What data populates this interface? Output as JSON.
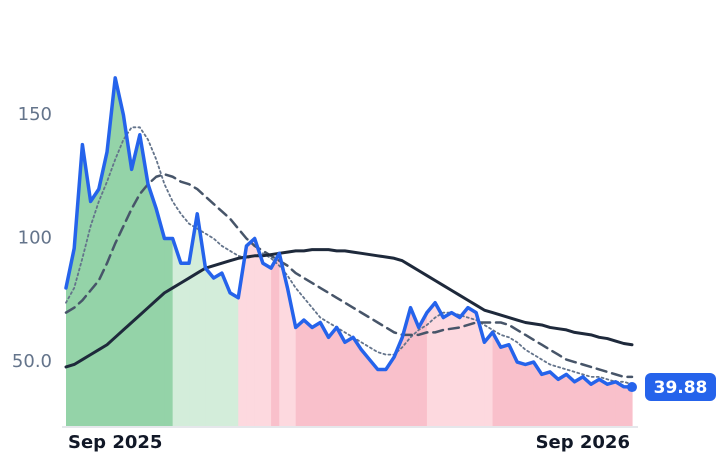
{
  "chart_data": {
    "type": "line",
    "categories": [
      null,
      null,
      null,
      null,
      null,
      null,
      "Sep 2025",
      null,
      null,
      null,
      null,
      null,
      null,
      null,
      null,
      null,
      null,
      null,
      null,
      null,
      null,
      null,
      null,
      null,
      null,
      null,
      null,
      null,
      null,
      null,
      null,
      null,
      null,
      null,
      null,
      null,
      null,
      null,
      null,
      null,
      null,
      null,
      null,
      null,
      null,
      null,
      null,
      null,
      null,
      null,
      null,
      null,
      null,
      null,
      null,
      null,
      null,
      null,
      null,
      null,
      null,
      null,
      null,
      "Sep 2026",
      null,
      null,
      null,
      null,
      null,
      null
    ],
    "series": [
      {
        "color": "#2563eb",
        "style": "solid",
        "width": 3.5,
        "values": [
          80,
          96,
          138,
          115,
          120,
          135,
          165,
          150,
          128,
          142,
          122,
          112,
          100,
          100,
          90,
          90,
          110,
          88,
          84,
          86,
          78,
          76,
          97,
          100,
          90,
          88,
          94,
          80,
          64,
          67,
          64,
          66,
          60,
          64,
          58,
          60,
          55,
          51,
          47,
          47,
          52,
          60,
          72,
          64,
          70,
          74,
          68,
          70,
          68,
          72,
          70,
          58,
          62,
          56,
          57,
          50,
          49,
          50,
          45,
          46,
          43,
          45,
          42,
          44,
          41,
          43,
          41,
          42,
          40,
          39.88
        ]
      },
      {
        "color": "#1e293b",
        "style": "solid",
        "width": 3,
        "values": [
          48,
          49,
          51,
          53,
          55,
          57,
          60,
          63,
          66,
          69,
          72,
          75,
          78,
          80,
          82,
          84,
          86,
          88,
          89,
          90,
          91,
          92,
          92.5,
          93,
          93,
          93.5,
          94,
          94.5,
          95,
          95,
          95.5,
          95.5,
          95.5,
          95,
          95,
          94.5,
          94,
          93.5,
          93,
          92.5,
          92,
          91,
          89,
          87,
          85,
          83,
          81,
          79,
          77,
          75,
          73,
          71,
          70,
          69,
          68,
          67,
          66,
          65.5,
          65,
          64,
          63.5,
          63,
          62,
          61.5,
          61,
          60,
          59.5,
          58.5,
          57.5,
          57
        ]
      },
      {
        "color": "#475569",
        "style": "dashed",
        "width": 2.5,
        "values": [
          70,
          72,
          75,
          79,
          83,
          90,
          98,
          105,
          112,
          118,
          122,
          125,
          126,
          125,
          123,
          122,
          120,
          117,
          114,
          111,
          108,
          104,
          100,
          97,
          95,
          93,
          91,
          89,
          86,
          84,
          82,
          80,
          78,
          76,
          74,
          72,
          70,
          68,
          66,
          64,
          62,
          61,
          61,
          61,
          62,
          62,
          63,
          63.5,
          64,
          65,
          66,
          66,
          66,
          66,
          65,
          63,
          61,
          59,
          57,
          55,
          53,
          51,
          50,
          49,
          48,
          47,
          46,
          45,
          44,
          44
        ]
      },
      {
        "color": "#64748b",
        "style": "dotted",
        "width": 1.8,
        "values": [
          74,
          80,
          92,
          105,
          115,
          123,
          132,
          140,
          145,
          145,
          140,
          132,
          122,
          115,
          110,
          106,
          104,
          102,
          100,
          97,
          95,
          93,
          92,
          93,
          94,
          92,
          89,
          85,
          80,
          76,
          72,
          68,
          66,
          64,
          62,
          60,
          58,
          56,
          54,
          53,
          53,
          56,
          60,
          63,
          65,
          68,
          70,
          70,
          69,
          68,
          67,
          65,
          63,
          61,
          60,
          58,
          55,
          53,
          51,
          49,
          48,
          47,
          46,
          45,
          44,
          44,
          43,
          42,
          42,
          41
        ]
      }
    ],
    "area_colors": [
      "#94d3a8",
      "#94d3a8",
      "#94d3a8",
      "#94d3a8",
      "#94d3a8",
      "#94d3a8",
      "#94d3a8",
      "#94d3a8",
      "#94d3a8",
      "#94d3a8",
      "#94d3a8",
      "#94d3a8",
      "#94d3a8",
      "#d3edda",
      "#d3edda",
      "#d3edda",
      "#d3edda",
      "#d3edda",
      "#d3edda",
      "#d3edda",
      "#d3edda",
      "#fdd9df",
      "#fdd9df",
      "#fdd9df",
      "#fdd9df",
      "#f9c0cb",
      "#fdd9df",
      "#fdd9df",
      "#f9c0cb",
      "#f9c0cb",
      "#f9c0cb",
      "#f9c0cb",
      "#f9c0cb",
      "#f9c0cb",
      "#f9c0cb",
      "#f9c0cb",
      "#f9c0cb",
      "#f9c0cb",
      "#f9c0cb",
      "#f9c0cb",
      "#f9c0cb",
      "#f9c0cb",
      "#f9c0cb",
      "#f9c0cb",
      "#fdd9df",
      "#fdd9df",
      "#fdd9df",
      "#fdd9df",
      "#fdd9df",
      "#fdd9df",
      "#fdd9df",
      "#fdd9df",
      "#f9c0cb",
      "#f9c0cb",
      "#f9c0cb",
      "#f9c0cb",
      "#f9c0cb",
      "#f9c0cb",
      "#f9c0cb",
      "#f9c0cb",
      "#f9c0cb",
      "#f9c0cb",
      "#f9c0cb",
      "#f9c0cb",
      "#f9c0cb",
      "#f9c0cb",
      "#f9c0cb",
      "#f9c0cb",
      "#f9c0cb",
      "#f9c0cb"
    ],
    "ylim": [
      23.7,
      184.4
    ],
    "yticks": [
      {
        "value": 50,
        "label": "50.0"
      },
      100,
      150
    ]
  }
}
